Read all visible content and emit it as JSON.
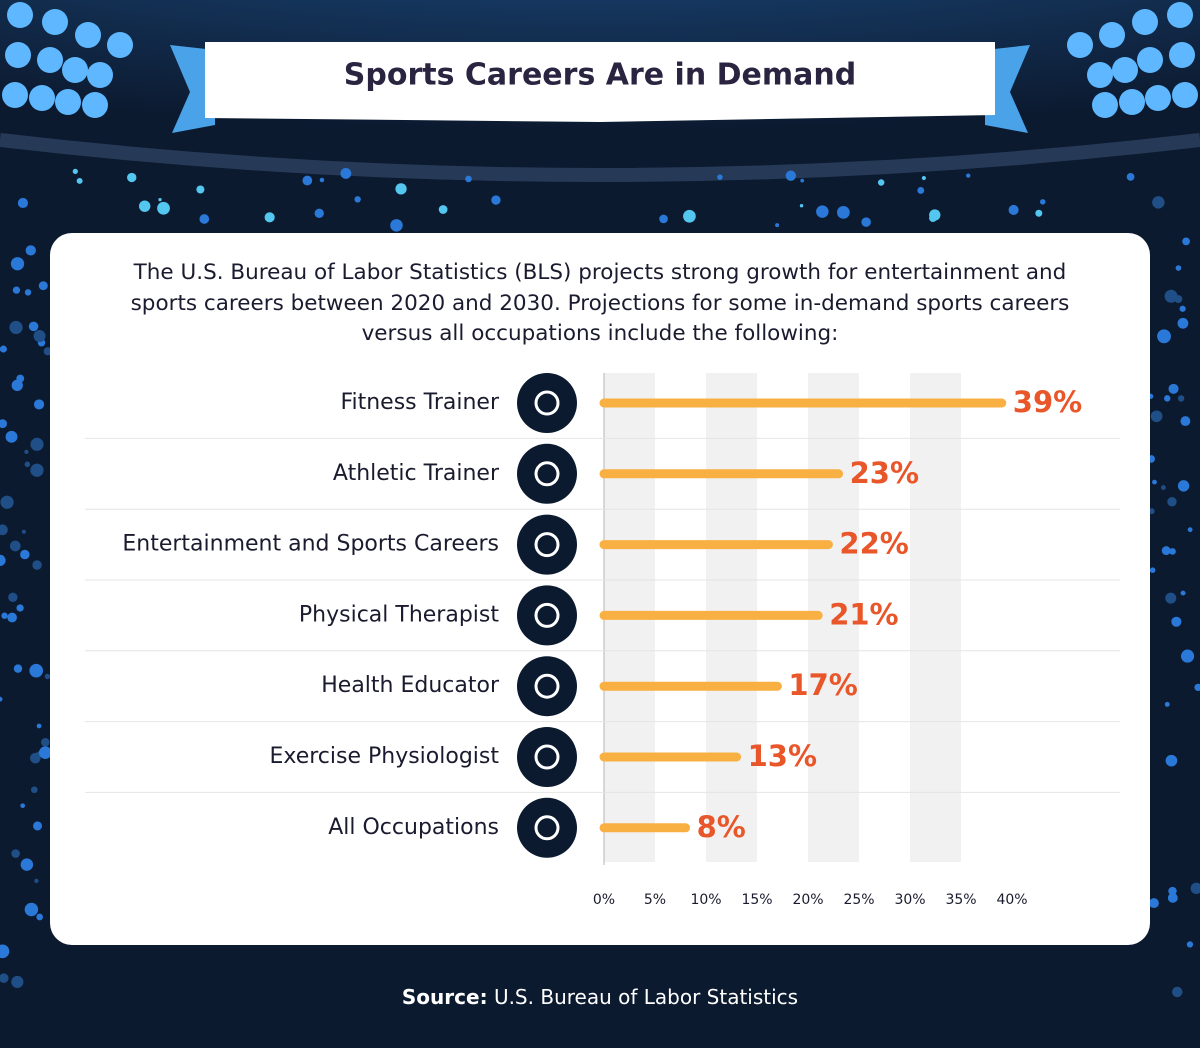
{
  "chart_data": {
    "type": "bar",
    "orientation": "horizontal",
    "title": "Sports Careers Are in Demand",
    "subtitle": "The U.S. Bureau of Labor Statistics (BLS) projects strong growth for entertainment and sports careers between 2020 and 2030. Projections for some in-demand sports careers versus all occupations include the following:",
    "categories": [
      "Fitness Trainer",
      "Athletic Trainer",
      "Entertainment and Sports Careers",
      "Physical Therapist",
      "Health Educator",
      "Exercise Physiologist",
      "All Occupations"
    ],
    "values": [
      39,
      23,
      22,
      21,
      17,
      13,
      8
    ],
    "value_labels": [
      "39%",
      "23%",
      "22%",
      "21%",
      "17%",
      "13%",
      "8%"
    ],
    "color": "#f9b042",
    "xlim": [
      0,
      40
    ],
    "xticks": [
      {
        "value": 0,
        "label": "0%"
      },
      {
        "value": 5,
        "label": "5%"
      },
      {
        "value": 10,
        "label": "10%"
      },
      {
        "value": 15,
        "label": "15%"
      },
      {
        "value": 20,
        "label": "20%"
      },
      {
        "value": 25,
        "label": "25%"
      },
      {
        "value": 30,
        "label": "30%"
      },
      {
        "value": 35,
        "label": "35%"
      },
      {
        "value": 40,
        "label": "40%"
      }
    ],
    "grid": true,
    "source_label": "Source:",
    "source": "U.S. Bureau of Labor Statistics"
  }
}
